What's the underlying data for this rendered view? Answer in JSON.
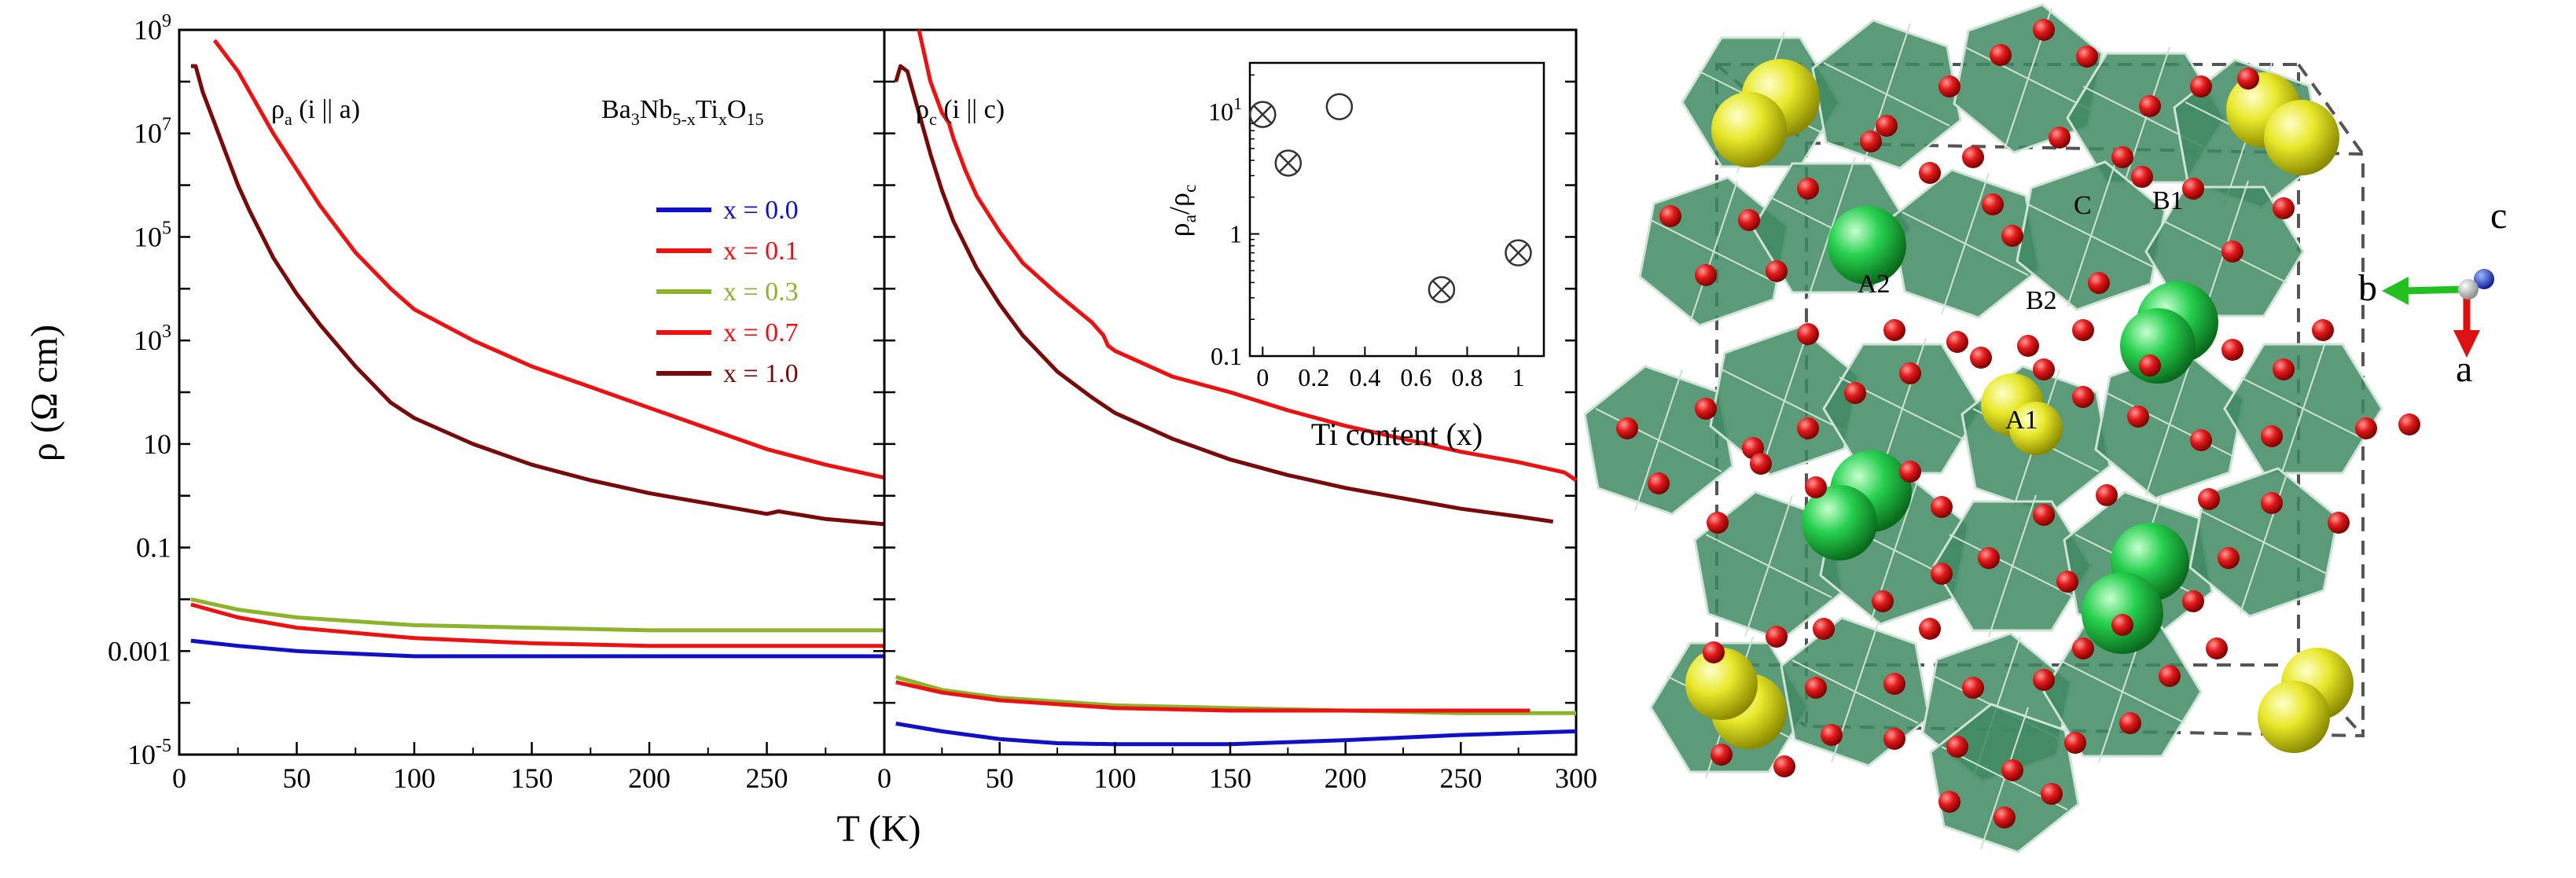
{
  "chart_data": [
    {
      "type": "line",
      "panel": "left",
      "panel_label": {
        "base": "ρ",
        "sub": "a",
        "rest": " (i || a)"
      },
      "compound": {
        "parts": [
          {
            "t": "Ba",
            "s": false
          },
          {
            "t": "3",
            "s": true
          },
          {
            "t": "Nb",
            "s": false
          },
          {
            "t": "5-x",
            "s": true
          },
          {
            "t": "Ti",
            "s": false
          },
          {
            "t": "x",
            "s": true
          },
          {
            "t": "O",
            "s": false
          },
          {
            "t": "15",
            "s": true
          }
        ]
      },
      "xlabel": "T (K)",
      "ylabel": "ρ (Ω cm)",
      "xlim": [
        0,
        300
      ],
      "ylim_log10": [
        -5,
        9
      ],
      "xticks": [
        0,
        50,
        100,
        150,
        200,
        250
      ],
      "yticks": [
        {
          "v": -5,
          "base": "10",
          "exp": "-5"
        },
        {
          "v": -3,
          "text": "0.001"
        },
        {
          "v": -1,
          "text": "0.1"
        },
        {
          "v": 1,
          "text": "10"
        },
        {
          "v": 3,
          "base": "10",
          "exp": "3"
        },
        {
          "v": 5,
          "base": "10",
          "exp": "5"
        },
        {
          "v": 7,
          "base": "10",
          "exp": "7"
        },
        {
          "v": 9,
          "base": "10",
          "exp": "9"
        }
      ],
      "legend": [
        {
          "label": "x = 0.0",
          "color": "#1010c8"
        },
        {
          "label": "x = 0.1",
          "color": "#ee1111"
        },
        {
          "label": "x = 0.3",
          "color": "#8bb42a"
        },
        {
          "label": "x = 0.7",
          "color": "#ee1111"
        },
        {
          "label": "x = 1.0",
          "color": "#7a0a0a"
        }
      ],
      "series": [
        {
          "color": "#ee1111",
          "x": [
            15,
            20,
            25,
            30,
            40,
            50,
            60,
            75,
            90,
            100,
            125,
            150,
            175,
            200,
            225,
            250,
            275,
            300
          ],
          "log10_y": [
            8.8,
            8.5,
            8.2,
            7.8,
            7.0,
            6.3,
            5.6,
            4.7,
            4.0,
            3.6,
            3.0,
            2.5,
            2.1,
            1.7,
            1.3,
            0.9,
            0.6,
            0.35
          ]
        },
        {
          "color": "#7a0a0a",
          "x": [
            5,
            7,
            10,
            15,
            20,
            25,
            30,
            40,
            50,
            60,
            75,
            90,
            100,
            125,
            150,
            175,
            200,
            225,
            250,
            255,
            275,
            300
          ],
          "log10_y": [
            8.3,
            8.3,
            7.8,
            7.2,
            6.6,
            6.0,
            5.5,
            4.6,
            3.9,
            3.3,
            2.5,
            1.8,
            1.5,
            1.0,
            0.6,
            0.3,
            0.05,
            -0.15,
            -0.35,
            -0.3,
            -0.45,
            -0.55
          ]
        },
        {
          "color": "#8bb42a",
          "x": [
            5,
            25,
            50,
            100,
            150,
            200,
            250,
            300
          ],
          "log10_y": [
            -2.0,
            -2.2,
            -2.35,
            -2.5,
            -2.55,
            -2.6,
            -2.6,
            -2.6
          ]
        },
        {
          "color": "#ee1111",
          "x": [
            5,
            25,
            50,
            100,
            150,
            200,
            250,
            300
          ],
          "log10_y": [
            -2.1,
            -2.35,
            -2.55,
            -2.75,
            -2.85,
            -2.9,
            -2.9,
            -2.9
          ]
        },
        {
          "color": "#1010c8",
          "x": [
            5,
            25,
            50,
            100,
            150,
            200,
            250,
            300
          ],
          "log10_y": [
            -2.8,
            -2.9,
            -3.0,
            -3.1,
            -3.1,
            -3.1,
            -3.1,
            -3.1
          ]
        }
      ]
    },
    {
      "type": "line",
      "panel": "right",
      "panel_label": {
        "base": "ρ",
        "sub": "c",
        "rest": " (i || c)"
      },
      "xlim": [
        0,
        300
      ],
      "ylim_log10": [
        -5,
        9
      ],
      "xticks": [
        0,
        50,
        100,
        150,
        200,
        250,
        300
      ],
      "series": [
        {
          "color": "#ee1111",
          "x": [
            15,
            20,
            25,
            28,
            30,
            35,
            40,
            50,
            60,
            75,
            90,
            95,
            97,
            100,
            125,
            150,
            175,
            200,
            225,
            250,
            275,
            290,
            295,
            300
          ],
          "log10_y": [
            9.0,
            8.0,
            7.4,
            7.2,
            6.9,
            6.3,
            5.8,
            5.1,
            4.5,
            3.9,
            3.35,
            3.1,
            2.9,
            2.8,
            2.3,
            2.0,
            1.65,
            1.35,
            1.1,
            0.85,
            0.65,
            0.5,
            0.45,
            0.3
          ]
        },
        {
          "color": "#7a0a0a",
          "x": [
            5,
            7,
            10,
            15,
            20,
            25,
            30,
            40,
            50,
            60,
            75,
            90,
            100,
            125,
            150,
            175,
            200,
            225,
            250,
            275,
            290
          ],
          "log10_y": [
            8.0,
            8.3,
            8.2,
            7.4,
            6.6,
            5.9,
            5.3,
            4.4,
            3.7,
            3.1,
            2.4,
            1.9,
            1.6,
            1.1,
            0.7,
            0.4,
            0.15,
            -0.05,
            -0.25,
            -0.4,
            -0.5
          ]
        },
        {
          "color": "#8bb42a",
          "x": [
            5,
            25,
            50,
            100,
            150,
            200,
            250,
            300
          ],
          "log10_y": [
            -3.5,
            -3.75,
            -3.9,
            -4.05,
            -4.1,
            -4.15,
            -4.2,
            -4.2
          ]
        },
        {
          "color": "#ee1111",
          "x": [
            5,
            25,
            50,
            100,
            150,
            200,
            250,
            280
          ],
          "log10_y": [
            -3.6,
            -3.8,
            -3.95,
            -4.1,
            -4.15,
            -4.15,
            -4.15,
            -4.15
          ]
        },
        {
          "color": "#1010c8",
          "x": [
            5,
            25,
            50,
            75,
            100,
            150,
            200,
            250,
            300
          ],
          "log10_y": [
            -4.4,
            -4.55,
            -4.7,
            -4.78,
            -4.8,
            -4.8,
            -4.72,
            -4.62,
            -4.55
          ]
        }
      ]
    },
    {
      "type": "scatter",
      "panel": "inset",
      "xlabel": "Ti content (x)",
      "ylabel": {
        "parts": [
          {
            "t": "ρ",
            "s": false
          },
          {
            "t": "a",
            "s": true
          },
          {
            "t": "/",
            "s": false
          },
          {
            "t": "ρ",
            "s": false
          },
          {
            "t": "c",
            "s": true
          }
        ]
      },
      "xlim": [
        -0.05,
        1.1
      ],
      "ylim_log10": [
        -1,
        1.4
      ],
      "xticks": [
        {
          "v": 0,
          "text": "0"
        },
        {
          "v": 0.2,
          "text": "0.2"
        },
        {
          "v": 0.4,
          "text": "0.4"
        },
        {
          "v": 0.6,
          "text": "0.6"
        },
        {
          "v": 0.8,
          "text": "0.8"
        },
        {
          "v": 1,
          "text": "1"
        }
      ],
      "yticks": [
        {
          "v": -1,
          "text": "0.1"
        },
        {
          "v": 0,
          "text": "1"
        },
        {
          "v": 1,
          "base": "10",
          "exp": "1"
        }
      ],
      "points": [
        {
          "x": 0.0,
          "y": 9.5,
          "marker": "circle-cross"
        },
        {
          "x": 0.1,
          "y": 3.8,
          "marker": "circle-cross"
        },
        {
          "x": 0.3,
          "y": 11.0,
          "marker": "circle"
        },
        {
          "x": 0.7,
          "y": 0.35,
          "marker": "circle-cross"
        },
        {
          "x": 1.0,
          "y": 0.7,
          "marker": "circle-cross"
        }
      ]
    }
  ],
  "structure": {
    "site_labels": [
      "A2",
      "B2",
      "C",
      "B1",
      "A1"
    ],
    "axis_labels": {
      "b": "b",
      "a": "a",
      "c": "c"
    },
    "colors": {
      "octahedra": "#3f8a63",
      "oxygen": "#dd1111",
      "ba_site": "#e6e61e",
      "a2_site": "#1ecc46"
    }
  }
}
